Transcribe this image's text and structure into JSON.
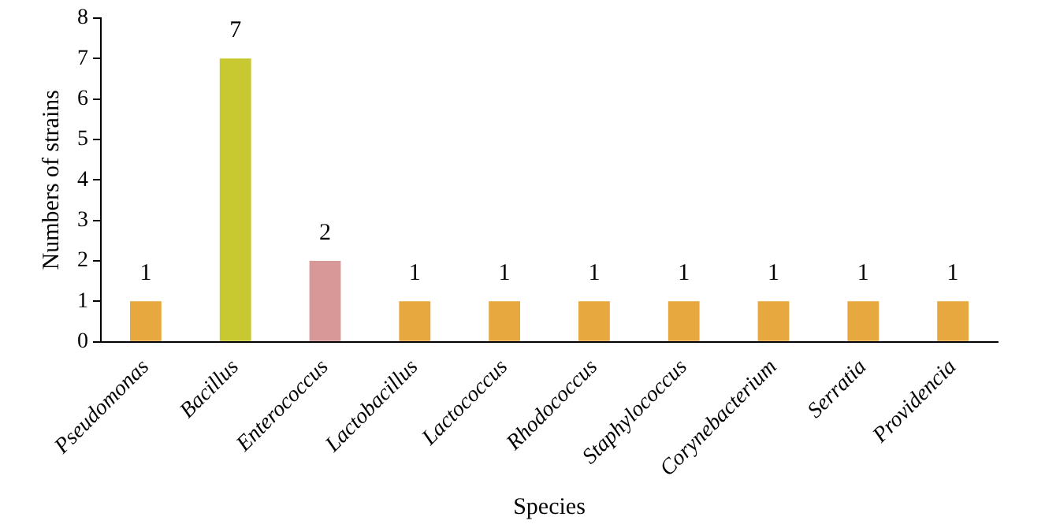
{
  "chart_data": {
    "type": "bar",
    "xlabel": "Species",
    "ylabel": "Numbers of strains",
    "categories": [
      "Pseudomonas",
      "Bacillus",
      "Enterococcus",
      "Lactobacillus",
      "Lactococcus",
      "Rhodococcus",
      "Staphylococcus",
      "Corynebacterium",
      "Serratia",
      "Providencia"
    ],
    "values": [
      1,
      7,
      2,
      1,
      1,
      1,
      1,
      1,
      1,
      1
    ],
    "colors": [
      "#e8a840",
      "#c8c830",
      "#d89898",
      "#e8a840",
      "#e8a840",
      "#e8a840",
      "#e8a840",
      "#e8a840",
      "#e8a840",
      "#e8a840"
    ],
    "ylim": [
      0,
      8
    ],
    "yticks": [
      0,
      1,
      2,
      3,
      4,
      5,
      6,
      7,
      8
    ],
    "grid": false,
    "data_labels": true
  }
}
